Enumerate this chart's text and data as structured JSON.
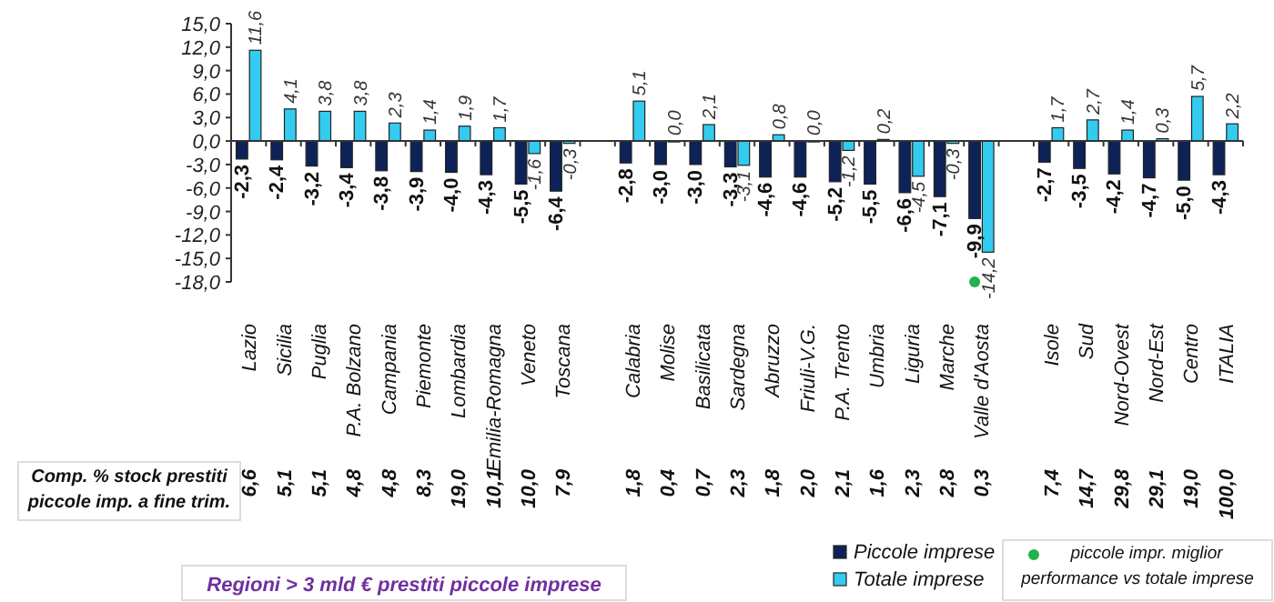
{
  "chart_data": {
    "type": "bar",
    "categories": [
      "Lazio",
      "Sicilia",
      "Puglia",
      "P.A. Bolzano",
      "Campania",
      "Piemonte",
      "Lombardia",
      "Emilia-Romagna",
      "Veneto",
      "Toscana",
      null,
      "Calabria",
      "Molise",
      "Basilicata",
      "Sardegna",
      "Abruzzo",
      "Friuli-V.G.",
      "P.A. Trento",
      "Umbria",
      "Liguria",
      "Marche",
      "Valle d'Aosta",
      null,
      "Isole",
      "Sud",
      "Nord-Ovest",
      "Nord-Est",
      "Centro",
      "ITALIA"
    ],
    "series": [
      {
        "name": "Piccole imprese",
        "color": "#0d2357",
        "values": [
          -2.3,
          -2.4,
          -3.2,
          -3.4,
          -3.8,
          -3.9,
          -4.0,
          -4.3,
          -5.5,
          -6.4,
          null,
          -2.8,
          -3.0,
          -3.0,
          -3.3,
          -4.6,
          -4.6,
          -5.2,
          -5.5,
          -6.6,
          -7.1,
          -9.9,
          null,
          -2.7,
          -3.5,
          -4.2,
          -4.7,
          -5.0,
          -4.3
        ],
        "value_labels": [
          "-2,3",
          "-2,4",
          "-3,2",
          "-3,4",
          "-3,8",
          "-3,9",
          "-4,0",
          "-4,3",
          "-5,5",
          "-6,4",
          null,
          "-2,8",
          "-3,0",
          "-3,0",
          "-3,3",
          "-4,6",
          "-4,6",
          "-5,2",
          "-5,5",
          "-6,6",
          "-7,1",
          "-9,9",
          null,
          "-2,7",
          "-3,5",
          "-4,2",
          "-4,7",
          "-5,0",
          "-4,3"
        ]
      },
      {
        "name": "Totale imprese",
        "color": "#33ccf0",
        "values": [
          11.6,
          4.1,
          3.8,
          3.8,
          2.3,
          1.4,
          1.9,
          1.7,
          -1.6,
          -0.3,
          null,
          5.1,
          0.0,
          2.1,
          -3.1,
          0.8,
          0.0,
          -1.2,
          0.2,
          -4.5,
          -0.3,
          -14.2,
          null,
          1.7,
          2.7,
          1.4,
          0.3,
          5.7,
          2.2
        ],
        "value_labels": [
          "11,6",
          "4,1",
          "3,8",
          "3,8",
          "2,3",
          "1,4",
          "1,9",
          "1,7",
          "-1,6",
          "-0,3",
          null,
          "5,1",
          "0,0",
          "2,1",
          "-3,1",
          "0,8",
          "0,0",
          "-1,2",
          "0,2",
          "-4,5",
          "-0,3",
          "-14,2",
          null,
          "1,7",
          "2,7",
          "1,4",
          "0,3",
          "5,7",
          "2,2"
        ]
      },
      {
        "type": "scatter",
        "name": "piccole impr. miglior performance vs totale imprese",
        "color": "#22b14c",
        "marker": "circle",
        "x": [
          "Valle d'Aosta"
        ],
        "values": [
          -18
        ]
      }
    ],
    "ylim": [
      -18,
      15
    ],
    "yticks": [
      {
        "value": 15,
        "label": "15,0"
      },
      {
        "value": 12,
        "label": "12,0"
      },
      {
        "value": 9,
        "label": "9,0"
      },
      {
        "value": 6,
        "label": "6,0"
      },
      {
        "value": 3,
        "label": "3,0"
      },
      {
        "value": 0,
        "label": "0,0"
      },
      {
        "value": -3,
        "label": "-3,0"
      },
      {
        "value": -6,
        "label": "-6,0"
      },
      {
        "value": -9,
        "label": "-9,0"
      },
      {
        "value": -12,
        "label": "-12,0"
      },
      {
        "value": -15,
        "label": "-15,0"
      },
      {
        "value": -18,
        "label": "-18,0"
      }
    ],
    "legend": "bottom right",
    "annotations": [
      "Comp. % stock prestiti piccole imp. a fine trim.",
      "6,6",
      "5,1",
      "5,1",
      "4,8",
      "4,8",
      "8,3",
      "19,0",
      "10,1",
      "10,0",
      "7,9",
      "1,8",
      "0,4",
      "0,7",
      "2,3",
      "1,8",
      "2,0",
      "2,1",
      "1,6",
      "2,3",
      "2,8",
      "0,3",
      "7,4",
      "14,7",
      "29,8",
      "29,1",
      "19,0",
      "100,0",
      "Regioni > 3 mld € prestiti piccole imprese"
    ]
  }
}
